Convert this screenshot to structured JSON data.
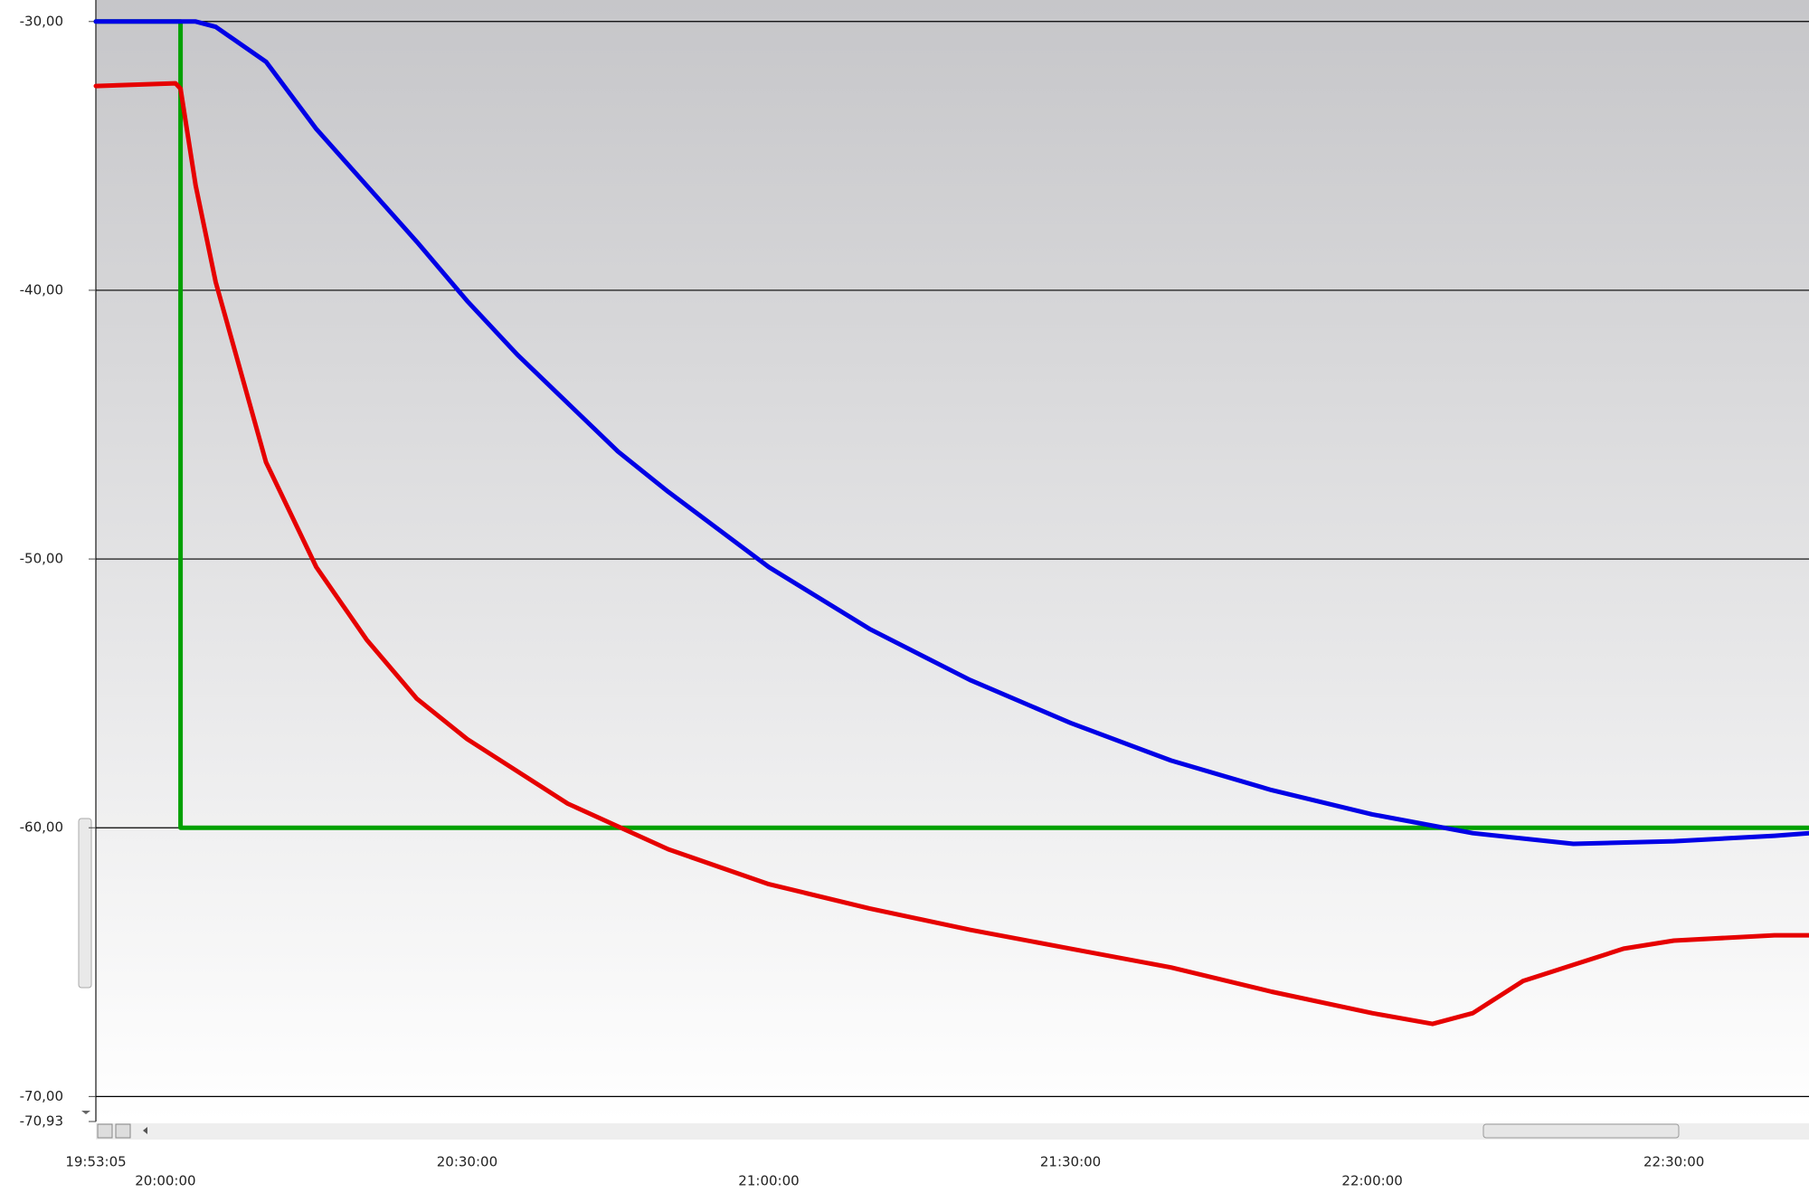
{
  "chart_data": {
    "type": "line",
    "xlim": [
      "19:53:05",
      "22:43:26"
    ],
    "ylim": [
      -70.93,
      -29.2
    ],
    "xticks": [
      "19:53:05",
      "20:00:00",
      "20:30:00",
      "21:00:00",
      "21:30:00",
      "22:00:00",
      "22:30:00"
    ],
    "yticks": [
      {
        "value": -30,
        "label": "-30,00"
      },
      {
        "value": -40,
        "label": "-40,00"
      },
      {
        "value": -50,
        "label": "-50,00"
      },
      {
        "value": -60,
        "label": "-60,00"
      },
      {
        "value": -70,
        "label": "-70,00"
      },
      {
        "value": -70.93,
        "label": "-70,93"
      }
    ],
    "grid": true,
    "series": [
      {
        "color": "#00a000",
        "x": [
          "19:53:05",
          "20:01:30",
          "20:01:30",
          "22:43:26"
        ],
        "values": [
          -30,
          -30,
          -60,
          -60
        ]
      },
      {
        "color": "#0000e6",
        "x": [
          "19:53:05",
          "20:00:00",
          "20:03:00",
          "20:05:00",
          "20:10:00",
          "20:15:00",
          "20:20:00",
          "20:25:00",
          "20:30:00",
          "20:35:00",
          "20:40:00",
          "20:45:00",
          "20:50:00",
          "20:55:00",
          "21:00:00",
          "21:10:00",
          "21:20:00",
          "21:30:00",
          "21:40:00",
          "21:50:00",
          "22:00:00",
          "22:10:00",
          "22:20:00",
          "22:30:00",
          "22:40:00",
          "22:43:26"
        ],
        "values": [
          -30.0,
          -30.0,
          -30.0,
          -30.2,
          -31.5,
          -34.0,
          -36.1,
          -38.2,
          -40.4,
          -42.4,
          -44.2,
          -46.0,
          -47.5,
          -48.9,
          -50.3,
          -52.6,
          -54.5,
          -56.1,
          -57.5,
          -58.6,
          -59.5,
          -60.2,
          -60.6,
          -60.5,
          -60.3,
          -60.2
        ]
      },
      {
        "color": "#e60000",
        "x": [
          "19:53:05",
          "20:01:00",
          "20:01:30",
          "20:03:00",
          "20:05:00",
          "20:10:00",
          "20:15:00",
          "20:20:00",
          "20:25:00",
          "20:30:00",
          "20:40:00",
          "20:50:00",
          "21:00:00",
          "21:10:00",
          "21:20:00",
          "21:30:00",
          "21:40:00",
          "21:50:00",
          "22:00:00",
          "22:06:00",
          "22:10:00",
          "22:15:00",
          "22:20:00",
          "22:25:00",
          "22:30:00",
          "22:40:00",
          "22:43:26"
        ],
        "values": [
          -32.4,
          -32.3,
          -32.5,
          -36.1,
          -39.7,
          -46.4,
          -50.3,
          -53.0,
          -55.2,
          -56.7,
          -59.1,
          -60.8,
          -62.1,
          -63.0,
          -63.8,
          -64.5,
          -65.2,
          -66.1,
          -66.9,
          -67.3,
          -66.9,
          -65.7,
          -65.1,
          -64.5,
          -64.2,
          -64.0,
          -64.0
        ]
      }
    ]
  }
}
